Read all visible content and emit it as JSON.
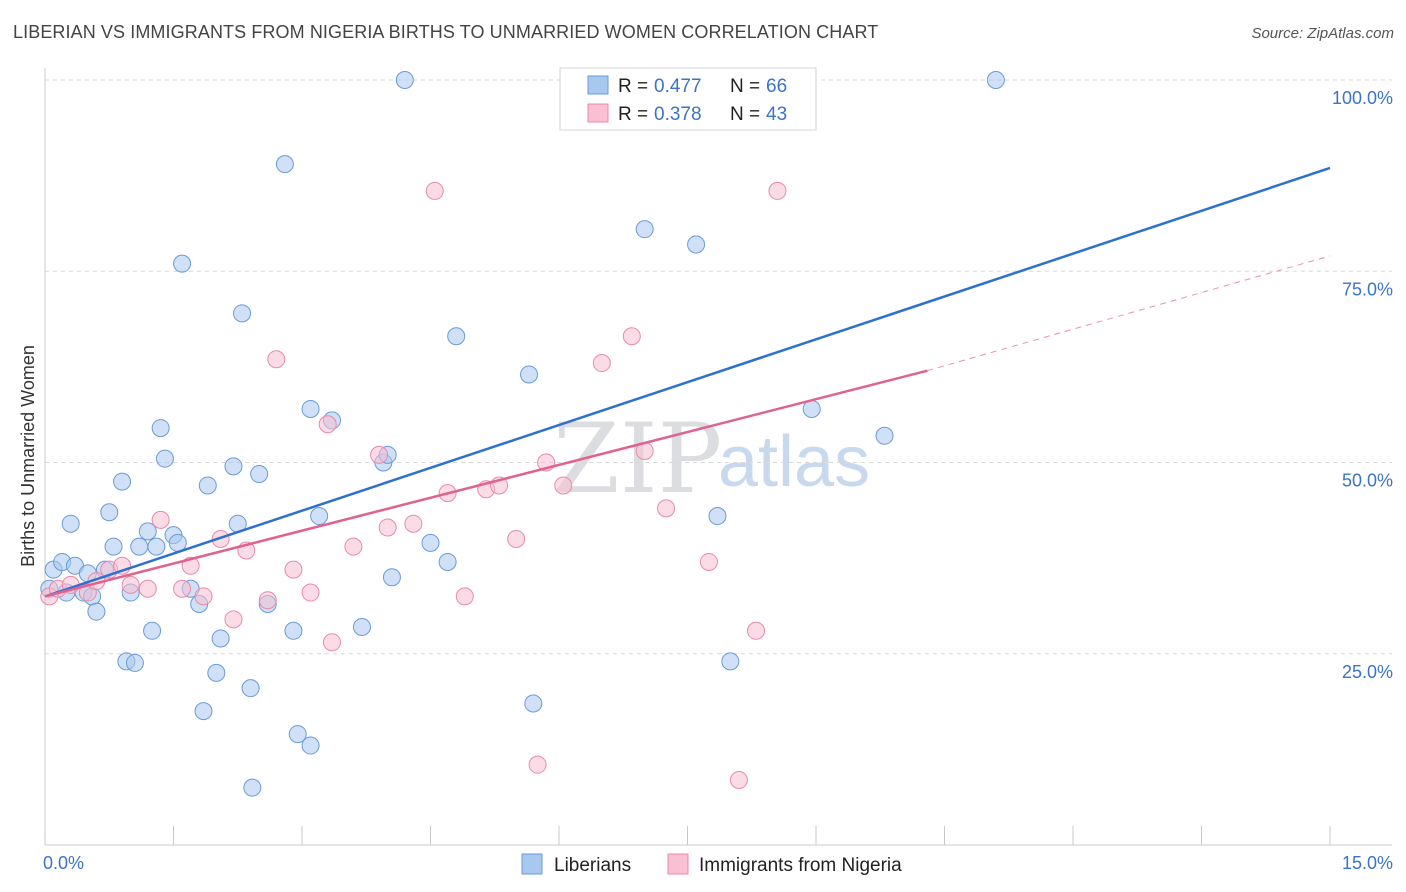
{
  "title": "LIBERIAN VS IMMIGRANTS FROM NIGERIA BIRTHS TO UNMARRIED WOMEN CORRELATION CHART",
  "source": "Source: ZipAtlas.com",
  "watermark": {
    "zip": "ZIP",
    "atlas": "atlas"
  },
  "legend_box": [
    {
      "r_label": "R = ",
      "r_value": "0.477",
      "n_label": "N = ",
      "n_value": "66"
    },
    {
      "r_label": "R = ",
      "r_value": "0.378",
      "n_label": "N = ",
      "n_value": "43"
    }
  ],
  "chart_data": {
    "type": "scatter",
    "title": "LIBERIAN VS IMMIGRANTS FROM NIGERIA BIRTHS TO UNMARRIED WOMEN CORRELATION CHART",
    "xlabel": "",
    "ylabel": "Births to Unmarried Women",
    "xlim": [
      0,
      15
    ],
    "ylim": [
      0,
      100
    ],
    "x_tick_labels": [
      "0.0%",
      "15.0%"
    ],
    "y_ticks": [
      25,
      50,
      75,
      100
    ],
    "y_tick_labels": [
      "25.0%",
      "50.0%",
      "75.0%",
      "100.0%"
    ],
    "grid": true,
    "legend_position": "top-center",
    "series": [
      {
        "name": "Liberians",
        "color": "#a9c8f0",
        "stroke": "#6a9bd8",
        "trend_color": "#2f6fd0",
        "r": 0.477,
        "n": 66,
        "trend": {
          "x": [
            0,
            15
          ],
          "y": [
            32.5,
            88.5
          ]
        },
        "points": [
          [
            0.05,
            33.5
          ],
          [
            0.1,
            36
          ],
          [
            0.2,
            37
          ],
          [
            0.25,
            33
          ],
          [
            0.3,
            42
          ],
          [
            0.35,
            36.5
          ],
          [
            0.45,
            33
          ],
          [
            0.5,
            35.5
          ],
          [
            0.55,
            32.5
          ],
          [
            0.6,
            30.5
          ],
          [
            0.7,
            36
          ],
          [
            0.75,
            43.5
          ],
          [
            0.8,
            39
          ],
          [
            0.9,
            47.5
          ],
          [
            0.95,
            24
          ],
          [
            1.0,
            33
          ],
          [
            1.05,
            23.8
          ],
          [
            1.1,
            39
          ],
          [
            1.2,
            41
          ],
          [
            1.25,
            28
          ],
          [
            1.3,
            39
          ],
          [
            1.35,
            54.5
          ],
          [
            1.4,
            50.5
          ],
          [
            1.5,
            40.5
          ],
          [
            1.55,
            39.5
          ],
          [
            1.6,
            76
          ],
          [
            1.7,
            33.5
          ],
          [
            1.8,
            31.5
          ],
          [
            1.85,
            17.5
          ],
          [
            1.9,
            47
          ],
          [
            2.0,
            22.5
          ],
          [
            2.05,
            27
          ],
          [
            2.2,
            49.5
          ],
          [
            2.25,
            42
          ],
          [
            2.3,
            69.5
          ],
          [
            2.4,
            20.5
          ],
          [
            2.42,
            7.5
          ],
          [
            2.5,
            48.5
          ],
          [
            2.6,
            31.5
          ],
          [
            2.8,
            89
          ],
          [
            2.9,
            28
          ],
          [
            2.95,
            14.5
          ],
          [
            3.1,
            13
          ],
          [
            3.1,
            57
          ],
          [
            3.2,
            43
          ],
          [
            3.35,
            55.5
          ],
          [
            3.7,
            28.5
          ],
          [
            3.95,
            50
          ],
          [
            4.0,
            51
          ],
          [
            4.05,
            35
          ],
          [
            4.2,
            100
          ],
          [
            4.5,
            39.5
          ],
          [
            4.7,
            37
          ],
          [
            4.8,
            66.5
          ],
          [
            5.65,
            61.5
          ],
          [
            5.7,
            18.5
          ],
          [
            7.0,
            80.5
          ],
          [
            7.6,
            78.5
          ],
          [
            7.85,
            43
          ],
          [
            8.0,
            24
          ],
          [
            8.95,
            57
          ],
          [
            9.8,
            53.5
          ],
          [
            11.1,
            100
          ],
          [
            6.95,
            100
          ],
          [
            7.05,
            100
          ],
          [
            7.2,
            100
          ]
        ]
      },
      {
        "name": "Immigrants from Nigeria",
        "color": "#f8c0d2",
        "stroke": "#e98aa9",
        "trend_color": "#e0628f",
        "r": 0.378,
        "n": 43,
        "trend": {
          "x": [
            0,
            10.3
          ],
          "y": [
            32.5,
            62
          ]
        },
        "trend_extension": {
          "x": [
            10.3,
            15
          ],
          "y": [
            62,
            77
          ]
        },
        "points": [
          [
            0.05,
            32.5
          ],
          [
            0.15,
            33.5
          ],
          [
            0.3,
            34
          ],
          [
            0.5,
            33
          ],
          [
            0.6,
            34.5
          ],
          [
            0.75,
            36
          ],
          [
            0.9,
            36.5
          ],
          [
            1.0,
            34
          ],
          [
            1.2,
            33.5
          ],
          [
            1.35,
            42.5
          ],
          [
            1.6,
            33.5
          ],
          [
            1.7,
            36.5
          ],
          [
            1.85,
            32.5
          ],
          [
            2.05,
            40
          ],
          [
            2.2,
            29.5
          ],
          [
            2.35,
            38.5
          ],
          [
            2.6,
            32
          ],
          [
            2.7,
            63.5
          ],
          [
            2.9,
            36
          ],
          [
            3.1,
            33
          ],
          [
            3.3,
            55
          ],
          [
            3.35,
            26.5
          ],
          [
            3.6,
            39
          ],
          [
            3.9,
            51
          ],
          [
            4.0,
            41.5
          ],
          [
            4.3,
            42
          ],
          [
            4.55,
            85.5
          ],
          [
            4.7,
            46
          ],
          [
            4.9,
            32.5
          ],
          [
            5.15,
            46.5
          ],
          [
            5.3,
            47
          ],
          [
            5.5,
            40
          ],
          [
            5.75,
            10.5
          ],
          [
            5.85,
            50
          ],
          [
            6.05,
            47
          ],
          [
            6.5,
            63
          ],
          [
            6.85,
            66.5
          ],
          [
            7.0,
            51.5
          ],
          [
            7.25,
            44
          ],
          [
            7.75,
            37
          ],
          [
            8.1,
            8.5
          ],
          [
            8.3,
            28
          ],
          [
            8.55,
            85.5
          ]
        ]
      }
    ]
  },
  "bottom_legend": [
    "Liberians",
    "Immigrants from Nigeria"
  ]
}
